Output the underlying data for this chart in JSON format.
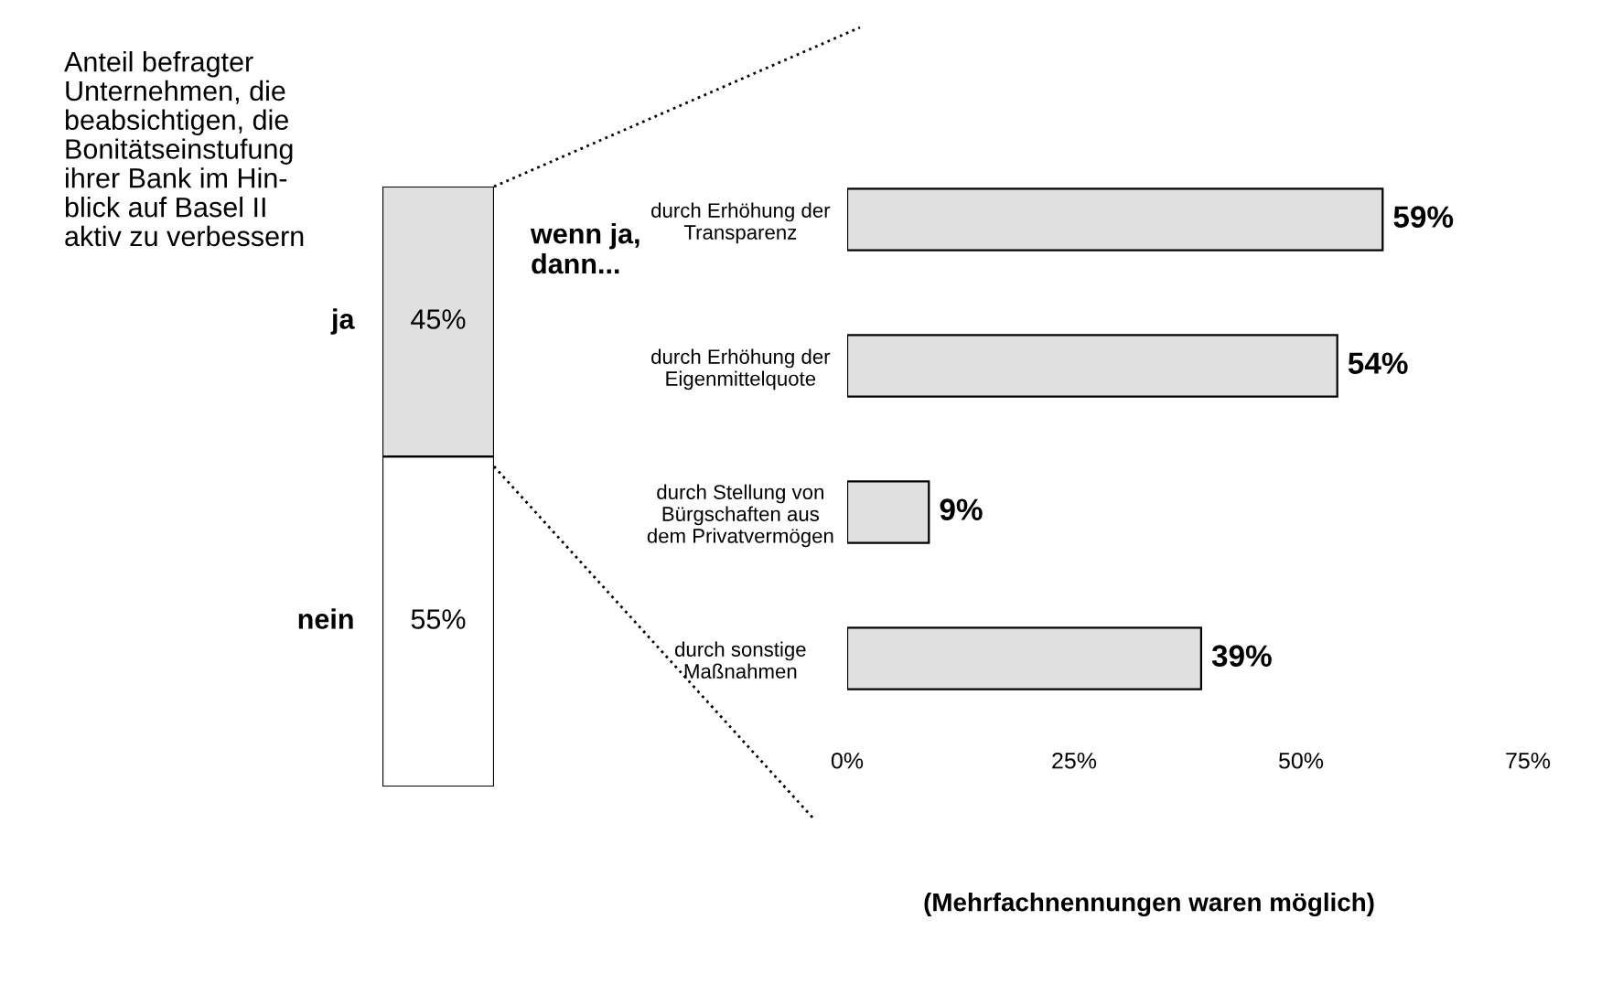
{
  "chart_data": [
    {
      "type": "bar",
      "stacked": true,
      "title": "Anteil befragter\nUnternehmen, die\nbeabsichtigen, die\nBonitätseinstufung\nihrer Bank im Hin-\nblick auf Basel II\naktiv zu verbessern",
      "categories": [
        null
      ],
      "tick_labels": false,
      "series": [
        {
          "name": "nein",
          "color": "#ffffff",
          "values": [
            55
          ],
          "value_labels": [
            "55%"
          ]
        },
        {
          "name": "ja",
          "color": "#e0e0e0",
          "values": [
            45
          ],
          "value_labels": [
            "45%"
          ]
        }
      ]
    },
    {
      "type": "bar",
      "orientation": "horizontal",
      "categories": [
        "durch Erhöhung der\nTransparenz",
        "durch Erhöhung der\nEigenmittelquote",
        "durch Stellung von\nBürgschaften aus\ndem Privatvermögen",
        "durch sonstige\nMaßnahmen"
      ],
      "values": [
        59,
        54,
        9,
        39
      ],
      "value_labels": [
        "59%",
        "54%",
        "9%",
        "39%"
      ],
      "color": "#e0e0e0",
      "xlim": [
        0,
        75
      ],
      "xticks": [
        {
          "value": 0,
          "label": "0%"
        },
        {
          "value": 25,
          "label": "25%"
        },
        {
          "value": 50,
          "label": "50%"
        },
        {
          "value": 75,
          "label": "75%"
        }
      ],
      "annotations": [
        "wenn ja,\ndann...",
        "(Mehrfachnennungen waren möglich)"
      ]
    }
  ]
}
